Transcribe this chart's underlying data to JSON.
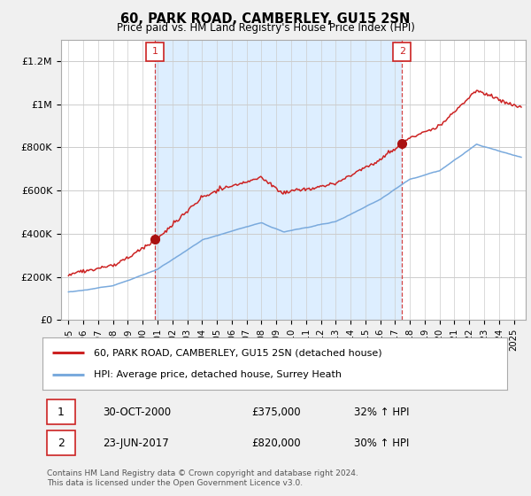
{
  "title": "60, PARK ROAD, CAMBERLEY, GU15 2SN",
  "subtitle": "Price paid vs. HM Land Registry's House Price Index (HPI)",
  "legend_line1": "60, PARK ROAD, CAMBERLEY, GU15 2SN (detached house)",
  "legend_line2": "HPI: Average price, detached house, Surrey Heath",
  "note1_date": "30-OCT-2000",
  "note1_price": "£375,000",
  "note1_hpi": "32% ↑ HPI",
  "note2_date": "23-JUN-2017",
  "note2_price": "£820,000",
  "note2_hpi": "30% ↑ HPI",
  "footnote": "Contains HM Land Registry data © Crown copyright and database right 2024.\nThis data is licensed under the Open Government Licence v3.0.",
  "red_line_color": "#cc2222",
  "blue_line_color": "#7aaadd",
  "vline_color": "#cc2222",
  "highlight_color": "#ddeeff",
  "bg_color": "#f0f0f0",
  "plot_bg_color": "#ffffff",
  "grid_color": "#cccccc",
  "ylim": [
    0,
    1300000
  ],
  "yticks": [
    0,
    200000,
    400000,
    600000,
    800000,
    1000000,
    1200000
  ],
  "ytick_labels": [
    "£0",
    "£200K",
    "£400K",
    "£600K",
    "£800K",
    "£1M",
    "£1.2M"
  ],
  "sale1_x": 2000.83,
  "sale1_y": 375000,
  "sale2_x": 2017.47,
  "sale2_y": 820000,
  "xmin": 1994.5,
  "xmax": 2025.8
}
